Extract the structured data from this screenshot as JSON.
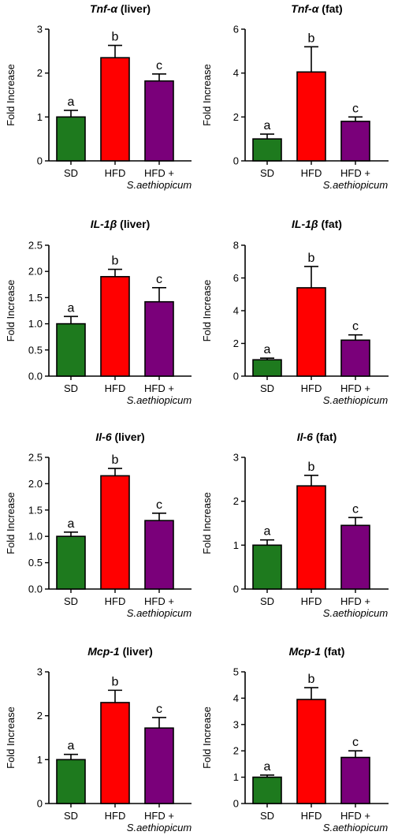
{
  "figure": {
    "categories": [
      "SD",
      "HFD",
      "HFD +"
    ],
    "category_sublabel": "S.aethiopicum",
    "colors": [
      "#1e7a1e",
      "#ff0000",
      "#7a007a"
    ]
  },
  "chart_data": [
    {
      "type": "bar",
      "title_gene": "Tnf-α",
      "title_tissue": " (liver)",
      "ylabel": "Fold Increase",
      "ylim": [
        0,
        3
      ],
      "yticks": [
        "0",
        "1",
        "2",
        "3"
      ],
      "values": [
        1.0,
        2.35,
        1.82
      ],
      "errors": [
        0.15,
        0.28,
        0.16
      ],
      "sig": [
        "a",
        "b",
        "c"
      ]
    },
    {
      "type": "bar",
      "title_gene": "Tnf-α",
      "title_tissue": " (fat)",
      "ylabel": "Fold Increase",
      "ylim": [
        0,
        6
      ],
      "yticks": [
        "0",
        "2",
        "4",
        "6"
      ],
      "values": [
        1.0,
        4.05,
        1.8
      ],
      "errors": [
        0.22,
        1.15,
        0.2
      ],
      "sig": [
        "a",
        "b",
        "c"
      ]
    },
    {
      "type": "bar",
      "title_gene": "IL-1β",
      "title_tissue": " (liver)",
      "ylabel": "Fold Increase",
      "ylim": [
        0,
        2.5
      ],
      "yticks": [
        "0.0",
        "0.5",
        "1.0",
        "1.5",
        "2.0",
        "2.5"
      ],
      "values": [
        1.0,
        1.9,
        1.42
      ],
      "errors": [
        0.14,
        0.14,
        0.27
      ],
      "sig": [
        "a",
        "b",
        "c"
      ]
    },
    {
      "type": "bar",
      "title_gene": "IL-1β",
      "title_tissue": " (fat)",
      "ylabel": "Fold Increase",
      "ylim": [
        0,
        8
      ],
      "yticks": [
        "0",
        "2",
        "4",
        "6",
        "8"
      ],
      "values": [
        1.0,
        5.4,
        2.2
      ],
      "errors": [
        0.1,
        1.3,
        0.32
      ],
      "sig": [
        "a",
        "b",
        "c"
      ]
    },
    {
      "type": "bar",
      "title_gene": "Il-6",
      "title_tissue": " (liver)",
      "ylabel": "Fold Increase",
      "ylim": [
        0,
        2.5
      ],
      "yticks": [
        "0.0",
        "0.5",
        "1.0",
        "1.5",
        "2.0",
        "2.5"
      ],
      "values": [
        1.0,
        2.15,
        1.3
      ],
      "errors": [
        0.08,
        0.14,
        0.14
      ],
      "sig": [
        "a",
        "b",
        "c"
      ]
    },
    {
      "type": "bar",
      "title_gene": "Il-6",
      "title_tissue": " (fat)",
      "ylabel": "Fold Increase",
      "ylim": [
        0,
        3
      ],
      "yticks": [
        "0",
        "1",
        "2",
        "3"
      ],
      "values": [
        1.0,
        2.35,
        1.45
      ],
      "errors": [
        0.12,
        0.24,
        0.18
      ],
      "sig": [
        "a",
        "b",
        "c"
      ]
    },
    {
      "type": "bar",
      "title_gene": "Mcp-1",
      "title_tissue": " (liver)",
      "ylabel": "Fold Increase",
      "ylim": [
        0,
        3
      ],
      "yticks": [
        "0",
        "1",
        "2",
        "3"
      ],
      "values": [
        1.0,
        2.3,
        1.72
      ],
      "errors": [
        0.12,
        0.28,
        0.24
      ],
      "sig": [
        "a",
        "b",
        "c"
      ]
    },
    {
      "type": "bar",
      "title_gene": "Mcp-1",
      "title_tissue": " (fat)",
      "ylabel": "Fold Increase",
      "ylim": [
        0,
        5
      ],
      "yticks": [
        "0",
        "1",
        "2",
        "3",
        "4",
        "5"
      ],
      "values": [
        1.0,
        3.95,
        1.75
      ],
      "errors": [
        0.08,
        0.45,
        0.25
      ],
      "sig": [
        "a",
        "b",
        "c"
      ]
    }
  ]
}
